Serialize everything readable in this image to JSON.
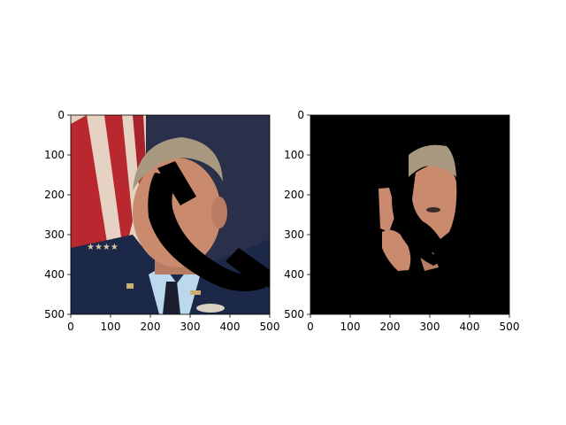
{
  "chart_data": [
    {
      "type": "image",
      "panel": "left",
      "description_key": "original",
      "xlim": [
        0,
        500
      ],
      "ylim": [
        500,
        0
      ],
      "xticks": [
        0,
        100,
        200,
        300,
        400,
        500
      ],
      "yticks": [
        0,
        100,
        200,
        300,
        400,
        500
      ],
      "xticklabels": [
        "0",
        "100",
        "200",
        "300",
        "400",
        "500"
      ],
      "yticklabels": [
        "0",
        "100",
        "200",
        "300",
        "400",
        "500"
      ],
      "colors": {
        "flag_red": "#b8282e",
        "flag_white": "#e8d6c8",
        "uniform": "#1c2848",
        "skin": "#c98a6e",
        "hair": "#a89880",
        "mask": "#000000"
      }
    },
    {
      "type": "image",
      "panel": "right",
      "description_key": "masked",
      "xlim": [
        0,
        500
      ],
      "ylim": [
        500,
        0
      ],
      "xticks": [
        0,
        100,
        200,
        300,
        400,
        500
      ],
      "yticks": [
        0,
        100,
        200,
        300,
        400,
        500
      ],
      "xticklabels": [
        "0",
        "100",
        "200",
        "300",
        "400",
        "500"
      ],
      "yticklabels": [
        "0",
        "100",
        "200",
        "300",
        "400",
        "500"
      ],
      "colors": {
        "background": "#000000",
        "skin": "#c98a6e"
      }
    }
  ]
}
